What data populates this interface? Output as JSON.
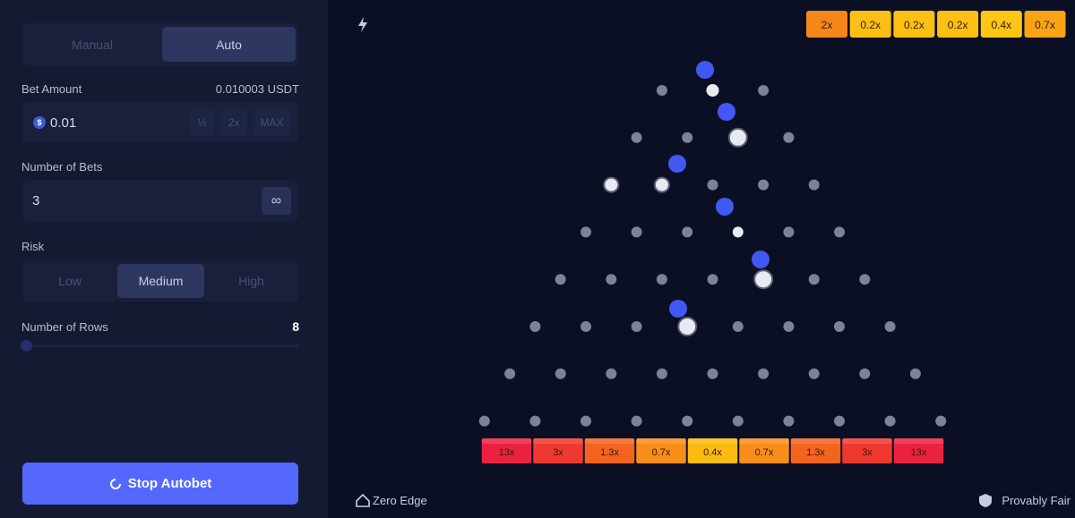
{
  "sidebar": {
    "mode_tabs": [
      "Manual",
      "Auto"
    ],
    "bet_amount": {
      "label": "Bet Amount",
      "converted": "0.010003 USDT",
      "value": "0.01",
      "buttons": [
        "½",
        "2x",
        "MAX"
      ]
    },
    "number_of_bets": {
      "label": "Number of Bets",
      "value": "3",
      "infinite": "∞"
    },
    "risk": {
      "label": "Risk",
      "options": [
        "Low",
        "Medium",
        "High"
      ]
    },
    "rows": {
      "label": "Number of Rows",
      "value": 8
    },
    "action": "Stop Autobet"
  },
  "board": {
    "recent_results": [
      "2x",
      "0.2x",
      "0.2x",
      "0.2x",
      "0.4x",
      "0.7x"
    ],
    "multipliers": [
      "13x",
      "3x",
      "1.3x",
      "0.7x",
      "0.4x",
      "0.7x",
      "1.3x",
      "3x",
      "13x"
    ]
  },
  "footer": {
    "zero_edge": "Zero Edge",
    "provably_fair": "Provably Fair"
  }
}
